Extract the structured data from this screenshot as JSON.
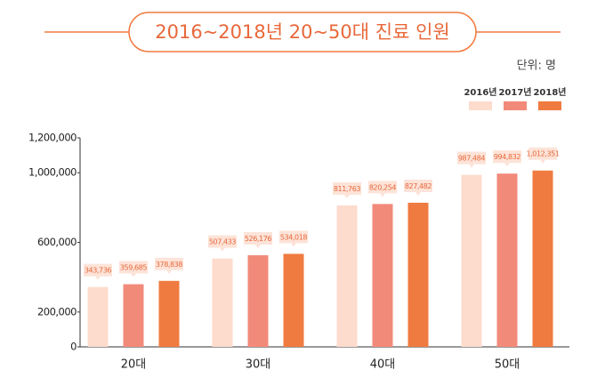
{
  "chart_data": {
    "type": "bar",
    "title": "2016~2018년 20~50대 진료 인원",
    "unit_label": "단위: 명",
    "categories": [
      "20대",
      "30대",
      "40대",
      "50대"
    ],
    "series": [
      {
        "name": "2016년",
        "color": "#fddbcd",
        "values": [
          343736,
          507433,
          811763,
          987484
        ],
        "value_labels": [
          "343,736",
          "507,433",
          "811,763",
          "987,484"
        ]
      },
      {
        "name": "2017년",
        "color": "#f28a7a",
        "values": [
          359685,
          526176,
          820254,
          994832
        ],
        "value_labels": [
          "359,685",
          "526,176",
          "820,254",
          "994,832"
        ]
      },
      {
        "name": "2018년",
        "color": "#f07b40",
        "values": [
          378838,
          534018,
          827482,
          1012351
        ],
        "value_labels": [
          "378,838",
          "534,018",
          "827,482",
          "1,012,351"
        ]
      }
    ],
    "ylim": [
      0,
      1200000
    ],
    "yticks": [
      0,
      {
        "value": 200000,
        "label": "200,000"
      },
      {
        "value": 600000,
        "label": "600,000"
      },
      {
        "value": 1000000,
        "label": "1,000,000"
      },
      {
        "value": 1200000,
        "label": "1,200,000"
      }
    ]
  }
}
